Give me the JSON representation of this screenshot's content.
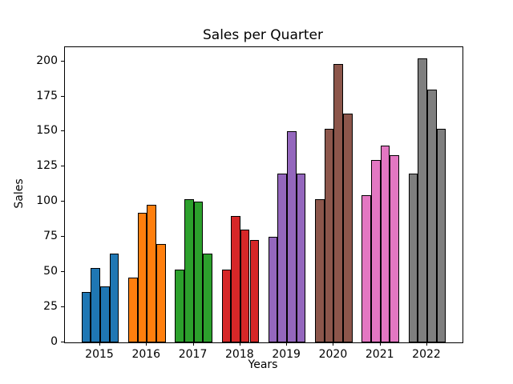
{
  "chart_data": {
    "type": "bar",
    "title": "Sales per Quarter",
    "xlabel": "Years",
    "ylabel": "Sales",
    "categories": [
      "2015",
      "2016",
      "2017",
      "2018",
      "2019",
      "2020",
      "2021",
      "2022"
    ],
    "groups": [
      {
        "year": "2015",
        "color": "#1f77b4",
        "values": [
          36,
          53,
          40,
          63
        ]
      },
      {
        "year": "2016",
        "color": "#ff7f0e",
        "values": [
          46,
          92,
          98,
          70
        ]
      },
      {
        "year": "2017",
        "color": "#2ca02c",
        "values": [
          52,
          102,
          100,
          63
        ]
      },
      {
        "year": "2018",
        "color": "#d62728",
        "values": [
          52,
          90,
          80,
          73
        ]
      },
      {
        "year": "2019",
        "color": "#9467bd",
        "values": [
          75,
          120,
          150,
          120
        ]
      },
      {
        "year": "2020",
        "color": "#8c564b",
        "values": [
          102,
          152,
          198,
          163
        ]
      },
      {
        "year": "2021",
        "color": "#e377c2",
        "values": [
          105,
          130,
          140,
          133
        ]
      },
      {
        "year": "2022",
        "color": "#7f7f7f",
        "values": [
          120,
          202,
          180,
          152
        ]
      }
    ],
    "y_ticks": [
      0,
      25,
      50,
      75,
      100,
      125,
      150,
      175,
      200
    ],
    "ylim": [
      0,
      210
    ],
    "grid": false,
    "legend": "none",
    "bar_edge_color": "#000000",
    "background_color": "#ffffff"
  }
}
